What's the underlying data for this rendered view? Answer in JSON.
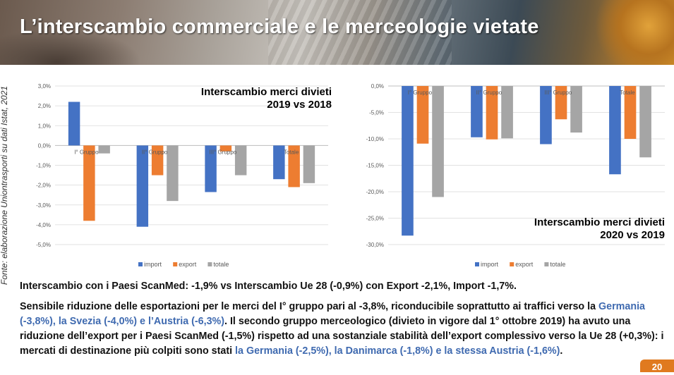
{
  "header": {
    "title": "L’interscambio commerciale e le merceologie vietate"
  },
  "source_note": "Fonte: elaborazione Uniontrasporti su dati Istat, 2021",
  "colors": {
    "import": "#4472c4",
    "export": "#ed7d31",
    "totale": "#a5a5a5",
    "highlight": "#3f6ab0",
    "accent": "#e07a1f"
  },
  "chart_data": [
    {
      "type": "bar",
      "title_lines": [
        "Interscambio merci divieti",
        "2019 vs 2018"
      ],
      "categories": [
        "I° Gruppo",
        "II° Gruppo",
        "III° Gruppo",
        "Totale"
      ],
      "series": [
        {
          "name": "import",
          "values": [
            2.2,
            -4.1,
            -2.35,
            -1.7
          ]
        },
        {
          "name": "export",
          "values": [
            -3.8,
            -1.5,
            -0.3,
            -2.1
          ]
        },
        {
          "name": "totale",
          "values": [
            -0.4,
            -2.8,
            -1.5,
            -1.9
          ]
        }
      ],
      "ylim": [
        -5,
        3
      ],
      "ticks": [
        "3,0%",
        "2,0%",
        "1,0%",
        "0,0%",
        "-1,0%",
        "-2,0%",
        "-3,0%",
        "-4,0%",
        "-5,0%"
      ],
      "grid": true,
      "legend": "bottom"
    },
    {
      "type": "bar",
      "title_lines": [
        "Interscambio merci divieti",
        "2020 vs 2019"
      ],
      "categories": [
        "I° Gruppo",
        "II° Gruppo",
        "III° Gruppo",
        "Totale"
      ],
      "series": [
        {
          "name": "import",
          "values": [
            -28.3,
            -9.7,
            -11.0,
            -16.7
          ]
        },
        {
          "name": "export",
          "values": [
            -10.9,
            -10.1,
            -6.3,
            -10.0
          ]
        },
        {
          "name": "totale",
          "values": [
            -21.0,
            -9.9,
            -8.8,
            -13.5
          ]
        }
      ],
      "ylim": [
        -30,
        0
      ],
      "ticks": [
        "0,0%",
        "-5,0%",
        "-10,0%",
        "-15,0%",
        "-20,0%",
        "-25,0%",
        "-30,0%"
      ],
      "grid": true,
      "legend": "bottom"
    }
  ],
  "paragraph1": "Interscambio con i Paesi ScanMed: -1,9% vs Interscambio Ue 28 (-0,9%) con Export -2,1%, Import -1,7%.",
  "paragraph2": {
    "part1": "Sensibile riduzione delle esportazioni per le merci del I° gruppo pari al -3,8%, riconducibile soprattutto ai traffici verso la ",
    "hl1": "Germania (-3,8%), la Svezia (-4,0%) e l’Austria (-6,3%)",
    "part2": ". Il secondo gruppo merceologico (divieto in vigore dal 1° ottobre 2019) ha avuto una riduzione dell’export per i Paesi ScanMed (-1,5%) rispetto ad una sostanziale stabilità dell’export complessivo verso la Ue 28 (+0,3%): i mercati di destinazione più colpiti sono stati ",
    "hl2": "la Germania (-2,5%), la Danimarca (-1,8%) e la stessa Austria (-1,6%)",
    "part3": "."
  },
  "page_number": "20"
}
